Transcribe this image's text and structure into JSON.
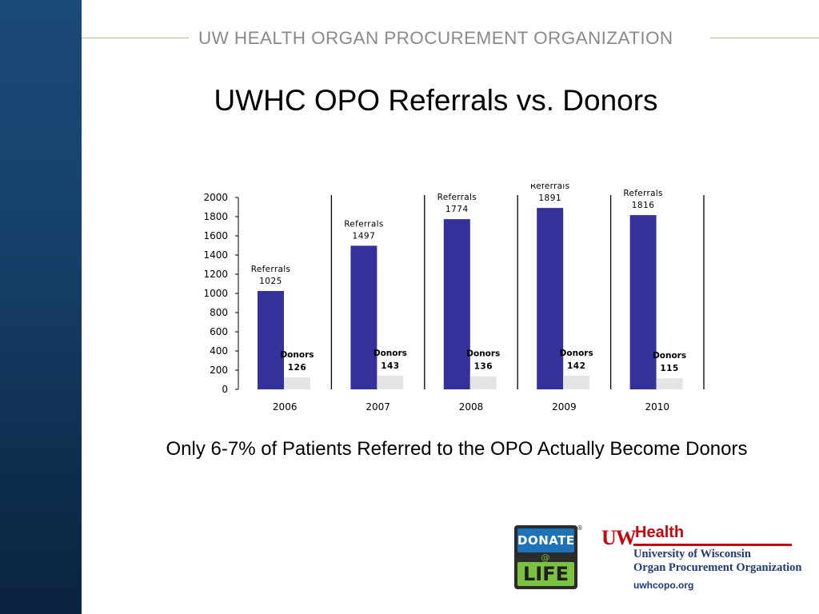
{
  "header": {
    "organization": "UW HEALTH ORGAN PROCUREMENT ORGANIZATION"
  },
  "slide": {
    "title": "UWHC OPO Referrals vs. Donors",
    "caption": "Only 6-7% of Patients Referred to the OPO Actually Become Donors"
  },
  "logos": {
    "donate_life": {
      "top": "DONATE",
      "middle": "@",
      "bottom": "LIFE",
      "mark": "®"
    },
    "uw_health": {
      "mark": "UW",
      "name": "Health",
      "line1": "University of Wisconsin",
      "line2": "Organ Procurement Organization",
      "url": "uwhcopo.org"
    }
  },
  "colors": {
    "side_bar": "#16406a",
    "referrals_bar": "#35319a",
    "donors_bar": "#e4e4e4",
    "header_text": "#8a8a8a",
    "uw_red": "#c5050c",
    "uw_blue": "#1f3b73"
  },
  "chart_data": {
    "type": "bar",
    "categories": [
      "2006",
      "2007",
      "2008",
      "2009",
      "2010"
    ],
    "series": [
      {
        "name": "Referrals",
        "values": [
          1025,
          1497,
          1774,
          1891,
          1816
        ]
      },
      {
        "name": "Donors",
        "values": [
          126,
          143,
          136,
          142,
          115
        ]
      }
    ],
    "yticks": [
      "0",
      "200",
      "400",
      "600",
      "800",
      "1000",
      "1200",
      "1400",
      "1600",
      "1800",
      "2000"
    ],
    "ylim": [
      0,
      2000
    ],
    "grid": false,
    "legend": "none"
  }
}
